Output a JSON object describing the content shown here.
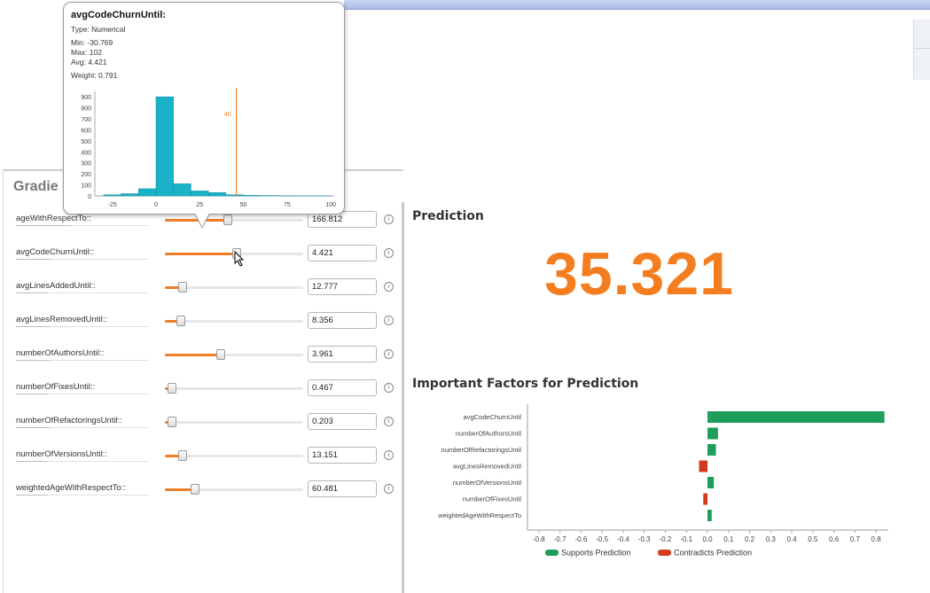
{
  "panel": {
    "title": "Gradie"
  },
  "features": [
    {
      "label": "ageWithRespectTo::",
      "value": "166.812",
      "level": 0.45
    },
    {
      "label": "avgCodeChurnUntil::",
      "value": "4.421",
      "level": 0.52
    },
    {
      "label": "avgLinesAddedUntil::",
      "value": "12.777",
      "level": 0.1
    },
    {
      "label": "avgLinesRemovedUntil::",
      "value": "8.356",
      "level": 0.09
    },
    {
      "label": "numberOfAuthorsUntil::",
      "value": "3.961",
      "level": 0.4
    },
    {
      "label": "numberOfFixesUntil::",
      "value": "0.467",
      "level": 0.02
    },
    {
      "label": "numberOfRefactoringsUntil::",
      "value": "0.203",
      "level": 0.02
    },
    {
      "label": "numberOfVersionsUntil::",
      "value": "13.151",
      "level": 0.1
    },
    {
      "label": "weightedAgeWithRespectTo::",
      "value": "60.481",
      "level": 0.2
    }
  ],
  "tooltip": {
    "title": "avgCodeChurnUntil:",
    "type": "Type: Numerical",
    "min": "Min: -30.769",
    "max": "Max: 102",
    "avg": "Avg: 4.421",
    "weight": "Weight: 0.791",
    "marker_label": "46",
    "histogram": {
      "type": "bar",
      "bin_edges": [
        -30,
        -20,
        -10,
        0,
        10,
        20,
        30,
        40,
        50,
        60,
        70,
        80,
        90,
        100
      ],
      "counts": [
        10,
        20,
        65,
        900,
        110,
        45,
        30,
        10,
        5,
        3,
        2,
        1,
        1
      ],
      "marker_value": 46,
      "y_ticks": [
        "0",
        "100",
        "200",
        "300",
        "400",
        "500",
        "600",
        "700",
        "800",
        "900"
      ],
      "x_ticks": [
        "-25",
        "0",
        "25",
        "50",
        "75",
        "100"
      ],
      "ylim": [
        0,
        950
      ],
      "xlim": [
        -35,
        102
      ],
      "bar_color": "#1ab2c8",
      "marker_color": "#f07e26"
    }
  },
  "prediction": {
    "title": "Prediction",
    "value": "35.321",
    "color": "#f47d20"
  },
  "important": {
    "title": "Important Factors for Prediction"
  },
  "chart_data": {
    "type": "bar",
    "orientation": "horizontal",
    "categories": [
      "avgCodeChurnUntil",
      "numberOfAuthorsUntil",
      "numberOfRefactoringsUntil",
      "avgLinesRemovedUntil",
      "numberOfVersionsUntil",
      "numberOfFixesUntil",
      "weightedAgeWithRespectTo"
    ],
    "values": [
      0.84,
      0.05,
      0.04,
      -0.04,
      0.03,
      -0.02,
      0.02
    ],
    "xlim": [
      -0.85,
      0.85
    ],
    "x_ticks": [
      "-0.8",
      "-0.7",
      "-0.6",
      "-0.5",
      "-0.4",
      "-0.3",
      "-0.2",
      "-0.1",
      "0.0",
      "0.1",
      "0.2",
      "0.3",
      "0.4",
      "0.5",
      "0.6",
      "0.7",
      "0.8"
    ],
    "series_colors": {
      "supports": "#1e9e5a",
      "contradicts": "#d33a1f"
    },
    "legend": [
      "Supports Prediction",
      "Contradicts Prediction"
    ],
    "legend_position": "bottom"
  }
}
